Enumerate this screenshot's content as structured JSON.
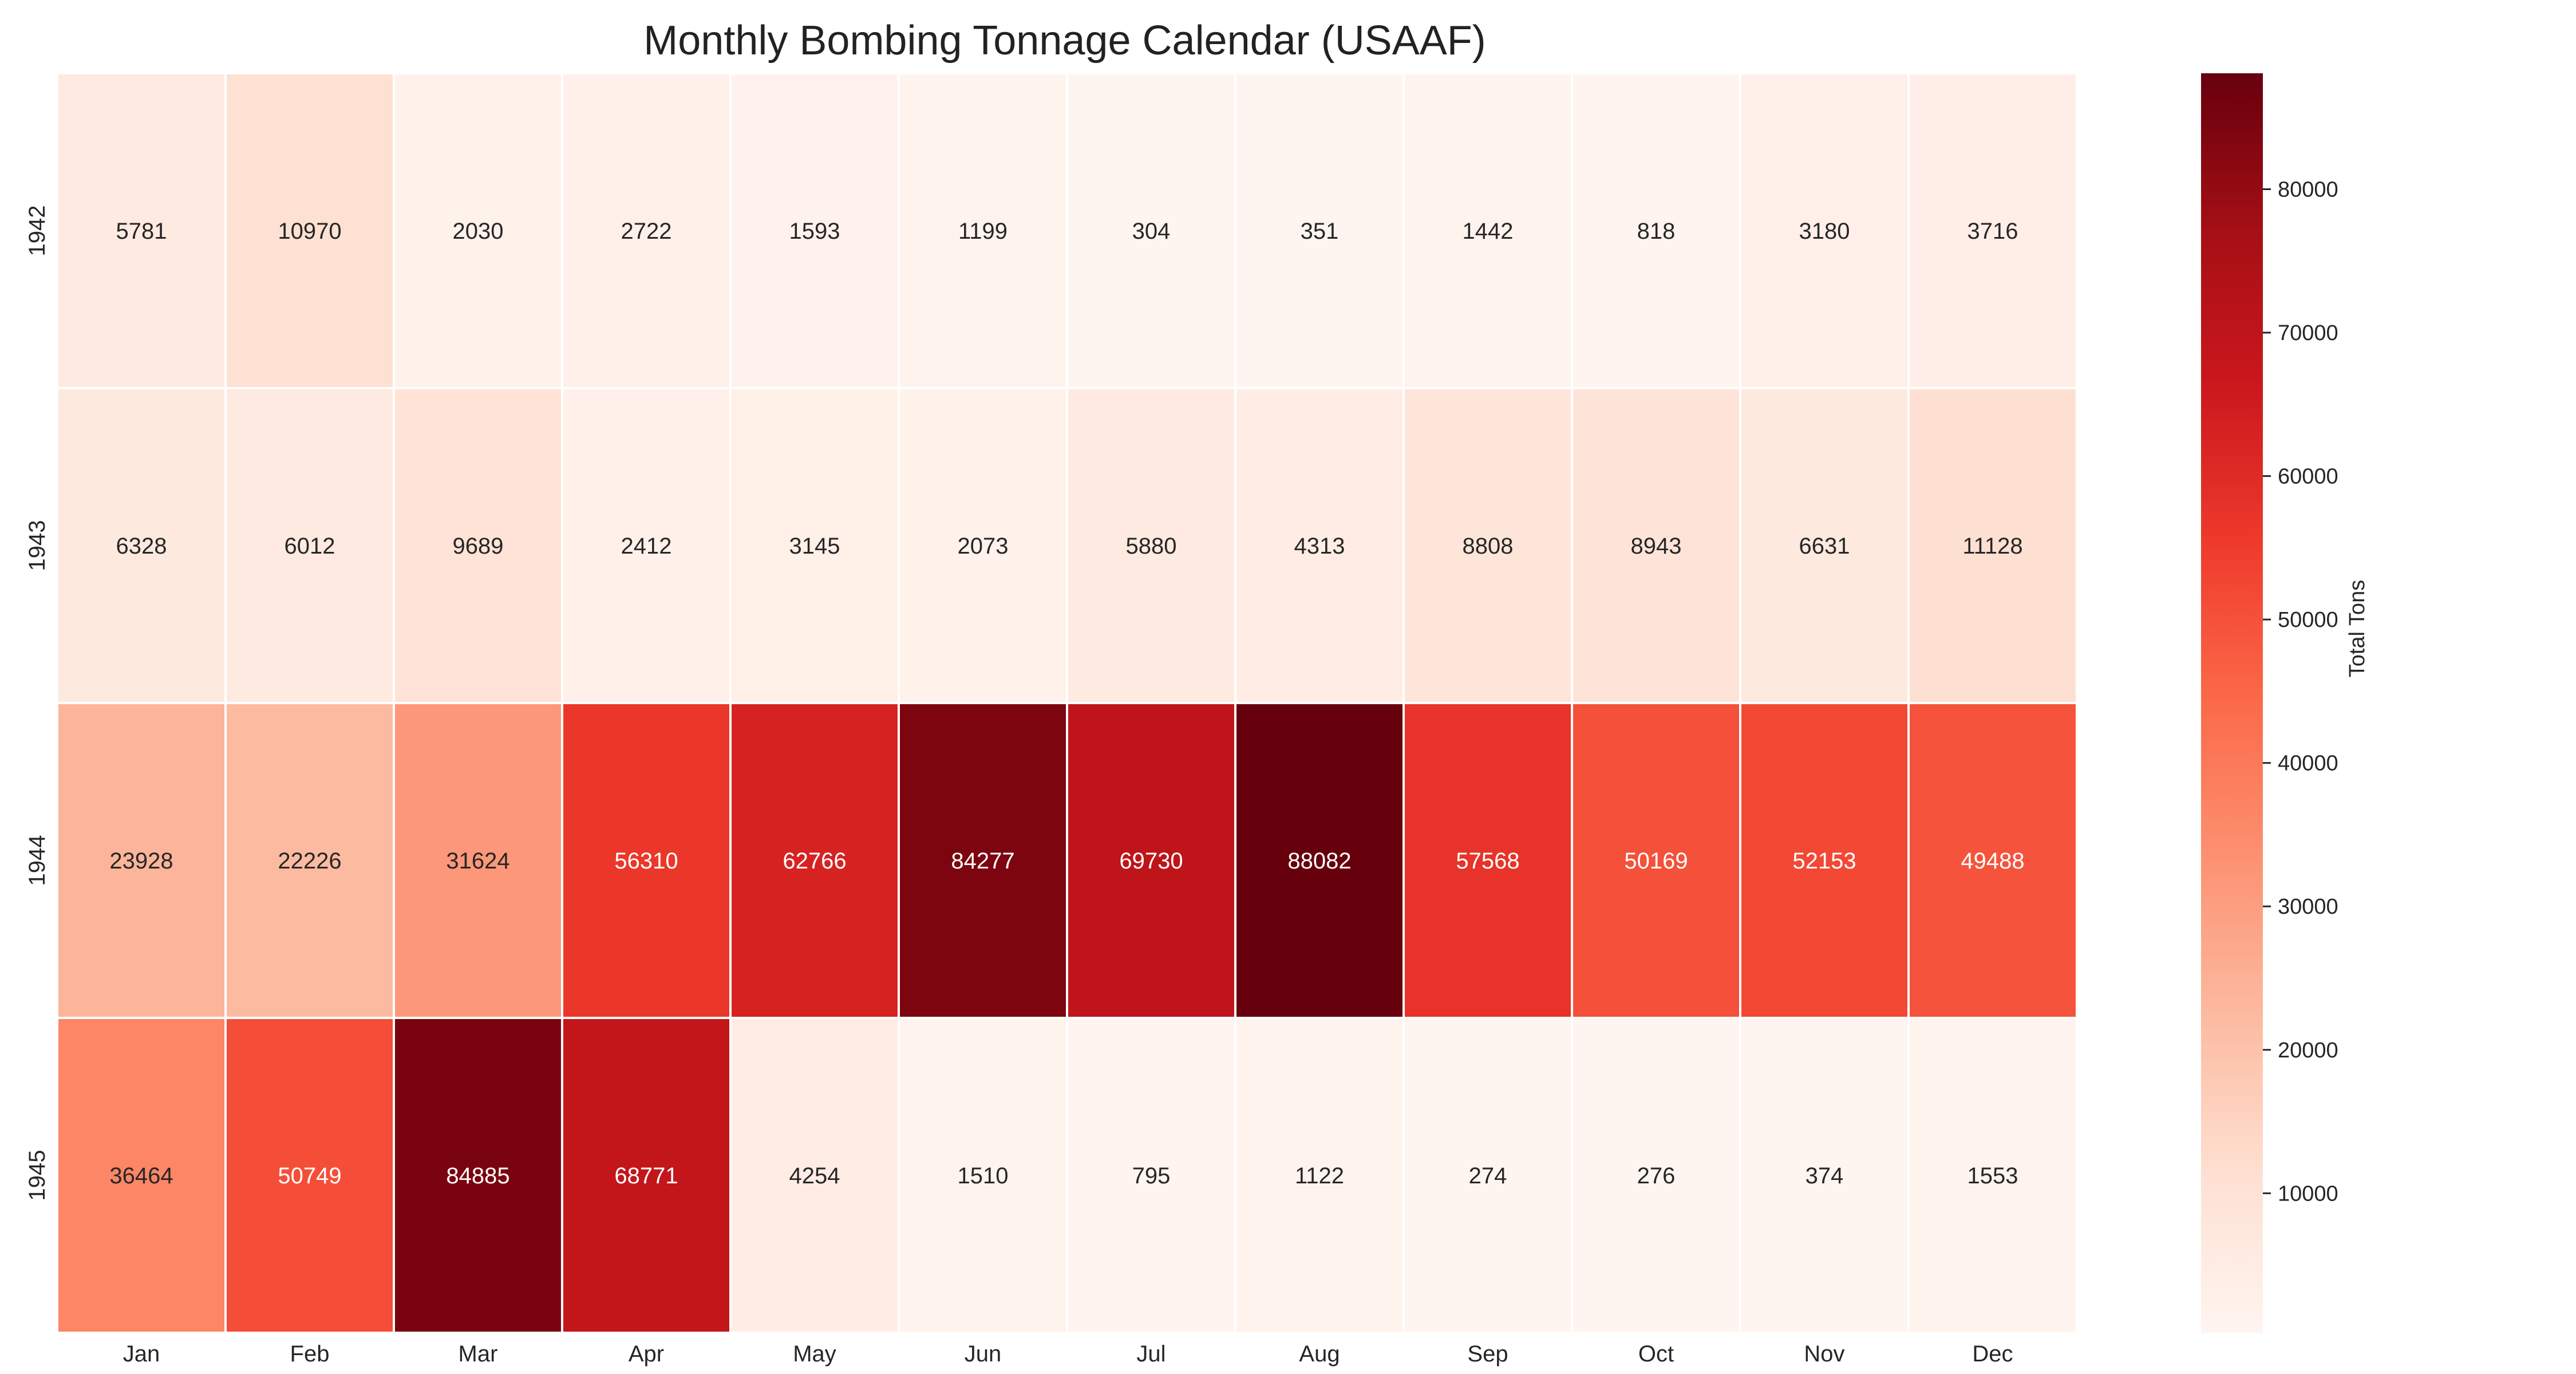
{
  "chart_data": {
    "type": "heatmap",
    "title": "Monthly Bombing Tonnage Calendar (USAAF)",
    "xlabel": "",
    "ylabel": "",
    "x_categories": [
      "Jan",
      "Feb",
      "Mar",
      "Apr",
      "May",
      "Jun",
      "Jul",
      "Aug",
      "Sep",
      "Oct",
      "Nov",
      "Dec"
    ],
    "y_categories": [
      "1942",
      "1943",
      "1944",
      "1945"
    ],
    "values": [
      [
        5781,
        10970,
        2030,
        2722,
        1593,
        1199,
        304,
        351,
        1442,
        818,
        3180,
        3716
      ],
      [
        6328,
        6012,
        9689,
        2412,
        3145,
        2073,
        5880,
        4313,
        8808,
        8943,
        6631,
        11128
      ],
      [
        23928,
        22226,
        31624,
        56310,
        62766,
        84277,
        69730,
        88082,
        57568,
        50169,
        52153,
        49488
      ],
      [
        36464,
        50749,
        84885,
        68771,
        4254,
        1510,
        795,
        1122,
        274,
        276,
        374,
        1553
      ]
    ],
    "colorbar": {
      "label": "Total Tons",
      "min": 274,
      "max": 88082,
      "ticks": [
        10000,
        20000,
        30000,
        40000,
        50000,
        60000,
        70000,
        80000
      ],
      "colormap": "Reds"
    },
    "annotations": "cell values shown",
    "grid": false
  }
}
